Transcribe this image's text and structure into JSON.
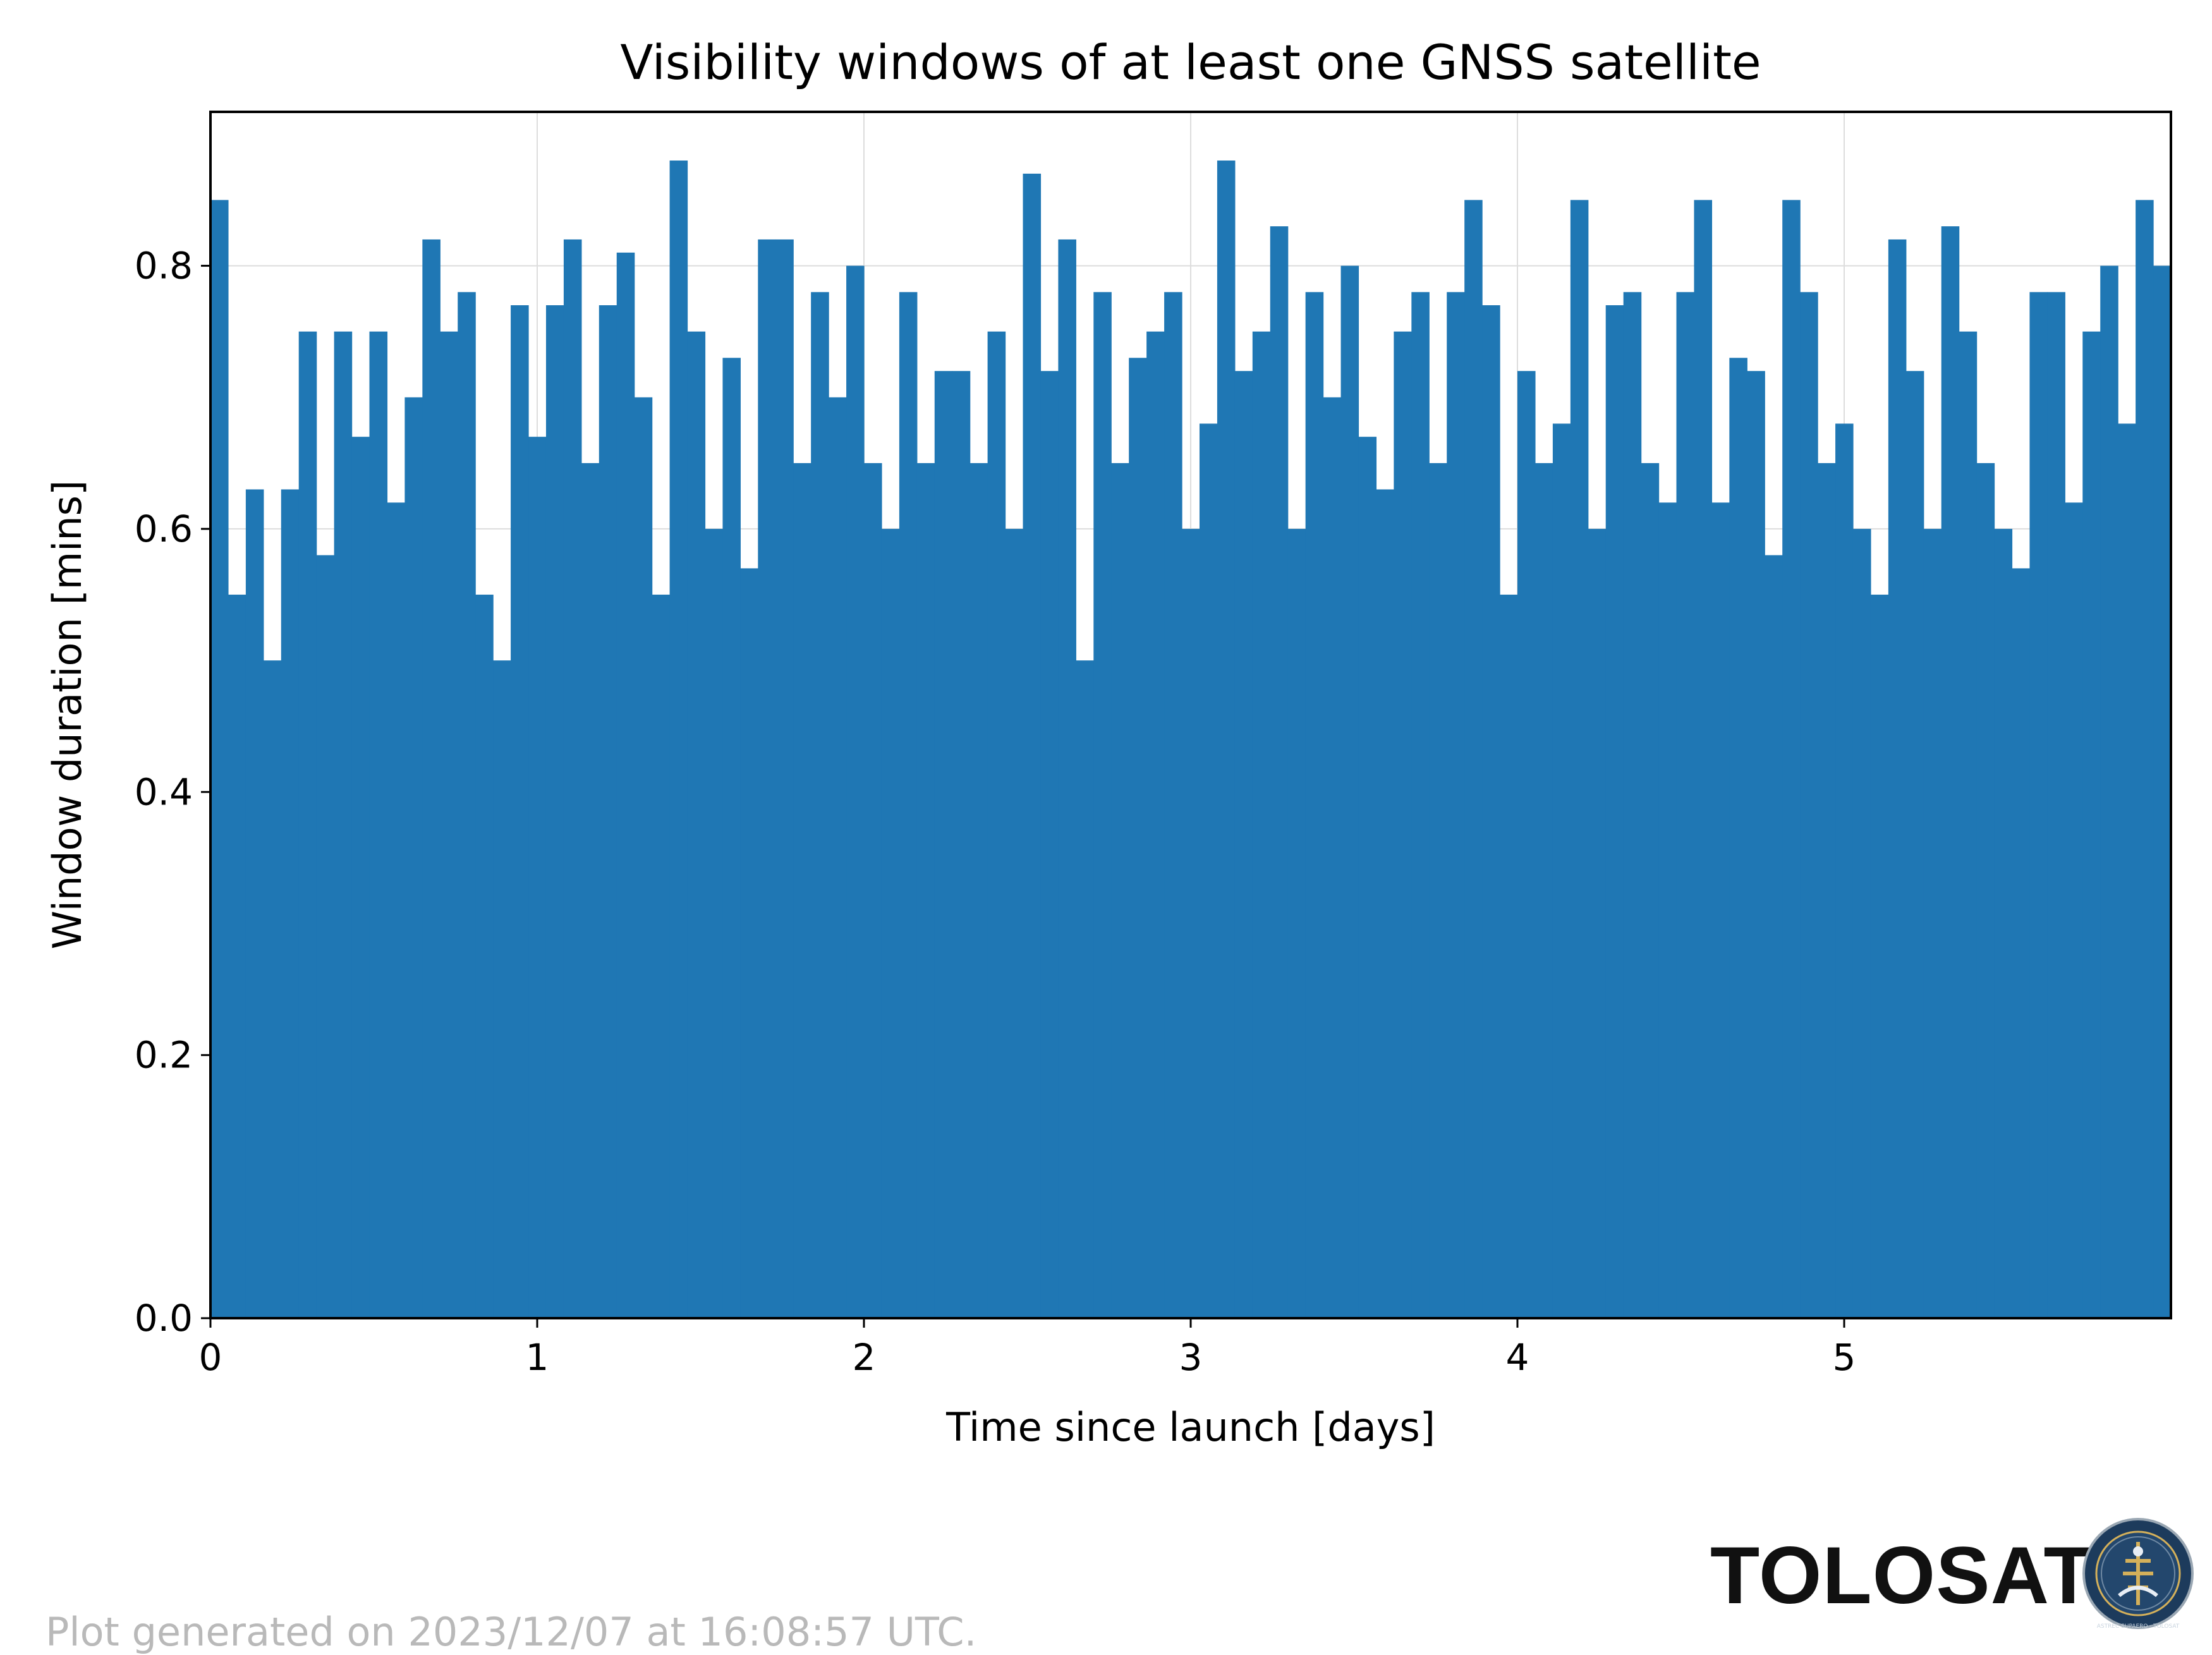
{
  "colors": {
    "bar": "#1f77b4",
    "grid": "#dddddd",
    "axis": "#000000",
    "footer_text": "#b9b9b9",
    "logo_bg": "#1d3b5c",
    "logo_accent": "#d4b05a"
  },
  "footer": {
    "note": "Plot generated on 2023/12/07 at 16:08:57 UTC.",
    "brand": "TOLOSAT",
    "logo_icon": "tolosat-seal-icon",
    "logo_ring_text": "ASTREC SUPAERO · TOLOSAT"
  },
  "chart_data": {
    "type": "bar",
    "title": "Visibility windows of at least one GNSS satellite",
    "xlabel": "Time since launch [days]",
    "ylabel": "Window duration [mins]",
    "xlim": [
      0,
      6.0
    ],
    "ylim": [
      0,
      0.917
    ],
    "xticks": [
      0,
      1,
      2,
      3,
      4,
      5
    ],
    "xtick_labels": [
      "0",
      "1",
      "2",
      "3",
      "4",
      "5"
    ],
    "yticks": [
      0.0,
      0.2,
      0.4,
      0.6,
      0.8
    ],
    "ytick_labels": [
      "0.0",
      "0.2",
      "0.4",
      "0.6",
      "0.8"
    ],
    "grid": true,
    "series": [
      {
        "x_start": 0.0,
        "x_step": 0.01,
        "values": [
          0.85,
          0.55,
          0.63,
          0.5,
          0.63,
          0.75,
          0.58,
          0.75,
          0.67,
          0.75,
          0.62,
          0.7,
          0.82,
          0.75,
          0.78,
          0.55,
          0.5,
          0.77,
          0.67,
          0.77,
          0.82,
          0.65,
          0.77,
          0.81,
          0.7,
          0.55,
          0.88,
          0.75,
          0.6,
          0.73,
          0.57,
          0.82,
          0.82,
          0.65,
          0.78,
          0.7,
          0.8,
          0.65,
          0.6,
          0.78,
          0.65,
          0.72,
          0.72,
          0.65,
          0.75,
          0.6,
          0.87,
          0.72,
          0.82,
          0.5,
          0.78,
          0.65,
          0.73,
          0.75,
          0.78,
          0.6,
          0.68,
          0.88,
          0.72,
          0.75,
          0.83,
          0.6,
          0.78,
          0.7,
          0.8,
          0.67,
          0.63,
          0.75,
          0.78,
          0.65,
          0.78,
          0.85,
          0.77,
          0.55,
          0.72,
          0.65,
          0.68,
          0.85,
          0.6,
          0.77,
          0.78,
          0.65,
          0.62,
          0.78,
          0.85,
          0.62,
          0.73,
          0.72,
          0.58,
          0.85,
          0.78,
          0.65,
          0.68,
          0.6,
          0.55,
          0.82,
          0.72,
          0.6,
          0.83,
          0.75,
          0.65,
          0.6,
          0.57,
          0.78,
          0.78,
          0.62,
          0.75,
          0.8,
          0.68,
          0.85,
          0.8
        ],
        "values_note": "sampled",
        "base_fill_value": 0.48
      }
    ]
  }
}
